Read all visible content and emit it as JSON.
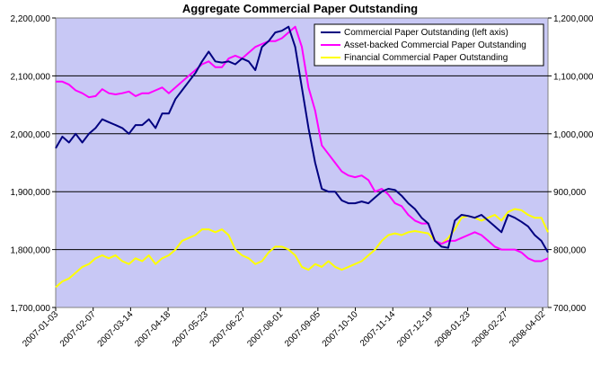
{
  "chart_data": {
    "type": "line",
    "title": "Aggregate Commercial Paper Outstanding",
    "xlabel": "",
    "ylabel": "",
    "y_left": {
      "min": 1700000,
      "max": 2200000,
      "ticks": [
        "1,700,000",
        "1,800,000",
        "1,900,000",
        "2,000,000",
        "2,100,000",
        "2,200,000"
      ]
    },
    "y_right": {
      "min": 700000,
      "max": 1200000,
      "ticks": [
        "700,000",
        "800,000",
        "900,000",
        "1,000,000",
        "1,100,000",
        "1,200,000"
      ]
    },
    "gridlines": "horizontal",
    "legend_position": "top-right",
    "x_tick_labels": [
      "2007-01-03",
      "2007-02-07",
      "2007-03-14",
      "2007-04-18",
      "2007-05-23",
      "2007-06-27",
      "2007-08-01",
      "2007-09-05",
      "2007-10-10",
      "2007-11-14",
      "2007-12-19",
      "2008-01-23",
      "2008-02-27",
      "2008-04-02"
    ],
    "series": [
      {
        "name": "Commercial Paper Outstanding (left axis)",
        "axis": "left",
        "color": "#000080",
        "values": [
          1975000,
          1995000,
          1985000,
          2000000,
          1985000,
          2000000,
          2010000,
          2025000,
          2020000,
          2015000,
          2010000,
          2000000,
          2015000,
          2015000,
          2025000,
          2010000,
          2035000,
          2035000,
          2060000,
          2075000,
          2090000,
          2105000,
          2125000,
          2142000,
          2125000,
          2123000,
          2125000,
          2120000,
          2130000,
          2125000,
          2110000,
          2150000,
          2160000,
          2175000,
          2178000,
          2185000,
          2150000,
          2080000,
          2010000,
          1950000,
          1905000,
          1900000,
          1900000,
          1885000,
          1880000,
          1880000,
          1883000,
          1880000,
          1890000,
          1900000,
          1905000,
          1903000,
          1893000,
          1880000,
          1870000,
          1855000,
          1845000,
          1815000,
          1805000,
          1803000,
          1850000,
          1860000,
          1858000,
          1855000,
          1860000,
          1850000,
          1840000,
          1830000,
          1860000,
          1855000,
          1848000,
          1840000,
          1825000,
          1815000,
          1795000
        ]
      },
      {
        "name": "Asset-backed Commercial Paper Outstanding",
        "axis": "right",
        "color": "#ff00ff",
        "values": [
          1090000,
          1090000,
          1085000,
          1075000,
          1070000,
          1063000,
          1065000,
          1077000,
          1070000,
          1068000,
          1070000,
          1073000,
          1065000,
          1070000,
          1070000,
          1075000,
          1080000,
          1070000,
          1080000,
          1090000,
          1100000,
          1110000,
          1120000,
          1125000,
          1115000,
          1115000,
          1130000,
          1135000,
          1130000,
          1140000,
          1150000,
          1155000,
          1160000,
          1160000,
          1165000,
          1175000,
          1185000,
          1150000,
          1080000,
          1040000,
          980000,
          965000,
          950000,
          935000,
          928000,
          925000,
          928000,
          920000,
          900000,
          905000,
          895000,
          880000,
          875000,
          860000,
          850000,
          845000,
          845000,
          815000,
          810000,
          815000,
          815000,
          820000,
          825000,
          830000,
          825000,
          815000,
          805000,
          800000,
          800000,
          800000,
          795000,
          785000,
          780000,
          780000,
          785000
        ]
      },
      {
        "name": "Financial Commercial Paper Outstanding",
        "axis": "right",
        "color": "#ffff00",
        "values": [
          735000,
          745000,
          750000,
          760000,
          770000,
          775000,
          785000,
          790000,
          785000,
          790000,
          780000,
          775000,
          785000,
          780000,
          790000,
          775000,
          785000,
          790000,
          800000,
          815000,
          820000,
          825000,
          835000,
          835000,
          830000,
          835000,
          825000,
          800000,
          790000,
          785000,
          775000,
          780000,
          795000,
          805000,
          805000,
          800000,
          790000,
          770000,
          765000,
          775000,
          770000,
          780000,
          770000,
          765000,
          770000,
          775000,
          780000,
          790000,
          800000,
          815000,
          825000,
          828000,
          825000,
          830000,
          832000,
          830000,
          828000,
          815000,
          810000,
          820000,
          835000,
          855000,
          858000,
          855000,
          850000,
          855000,
          860000,
          850000,
          865000,
          870000,
          868000,
          860000,
          855000,
          855000,
          830000
        ]
      }
    ]
  }
}
